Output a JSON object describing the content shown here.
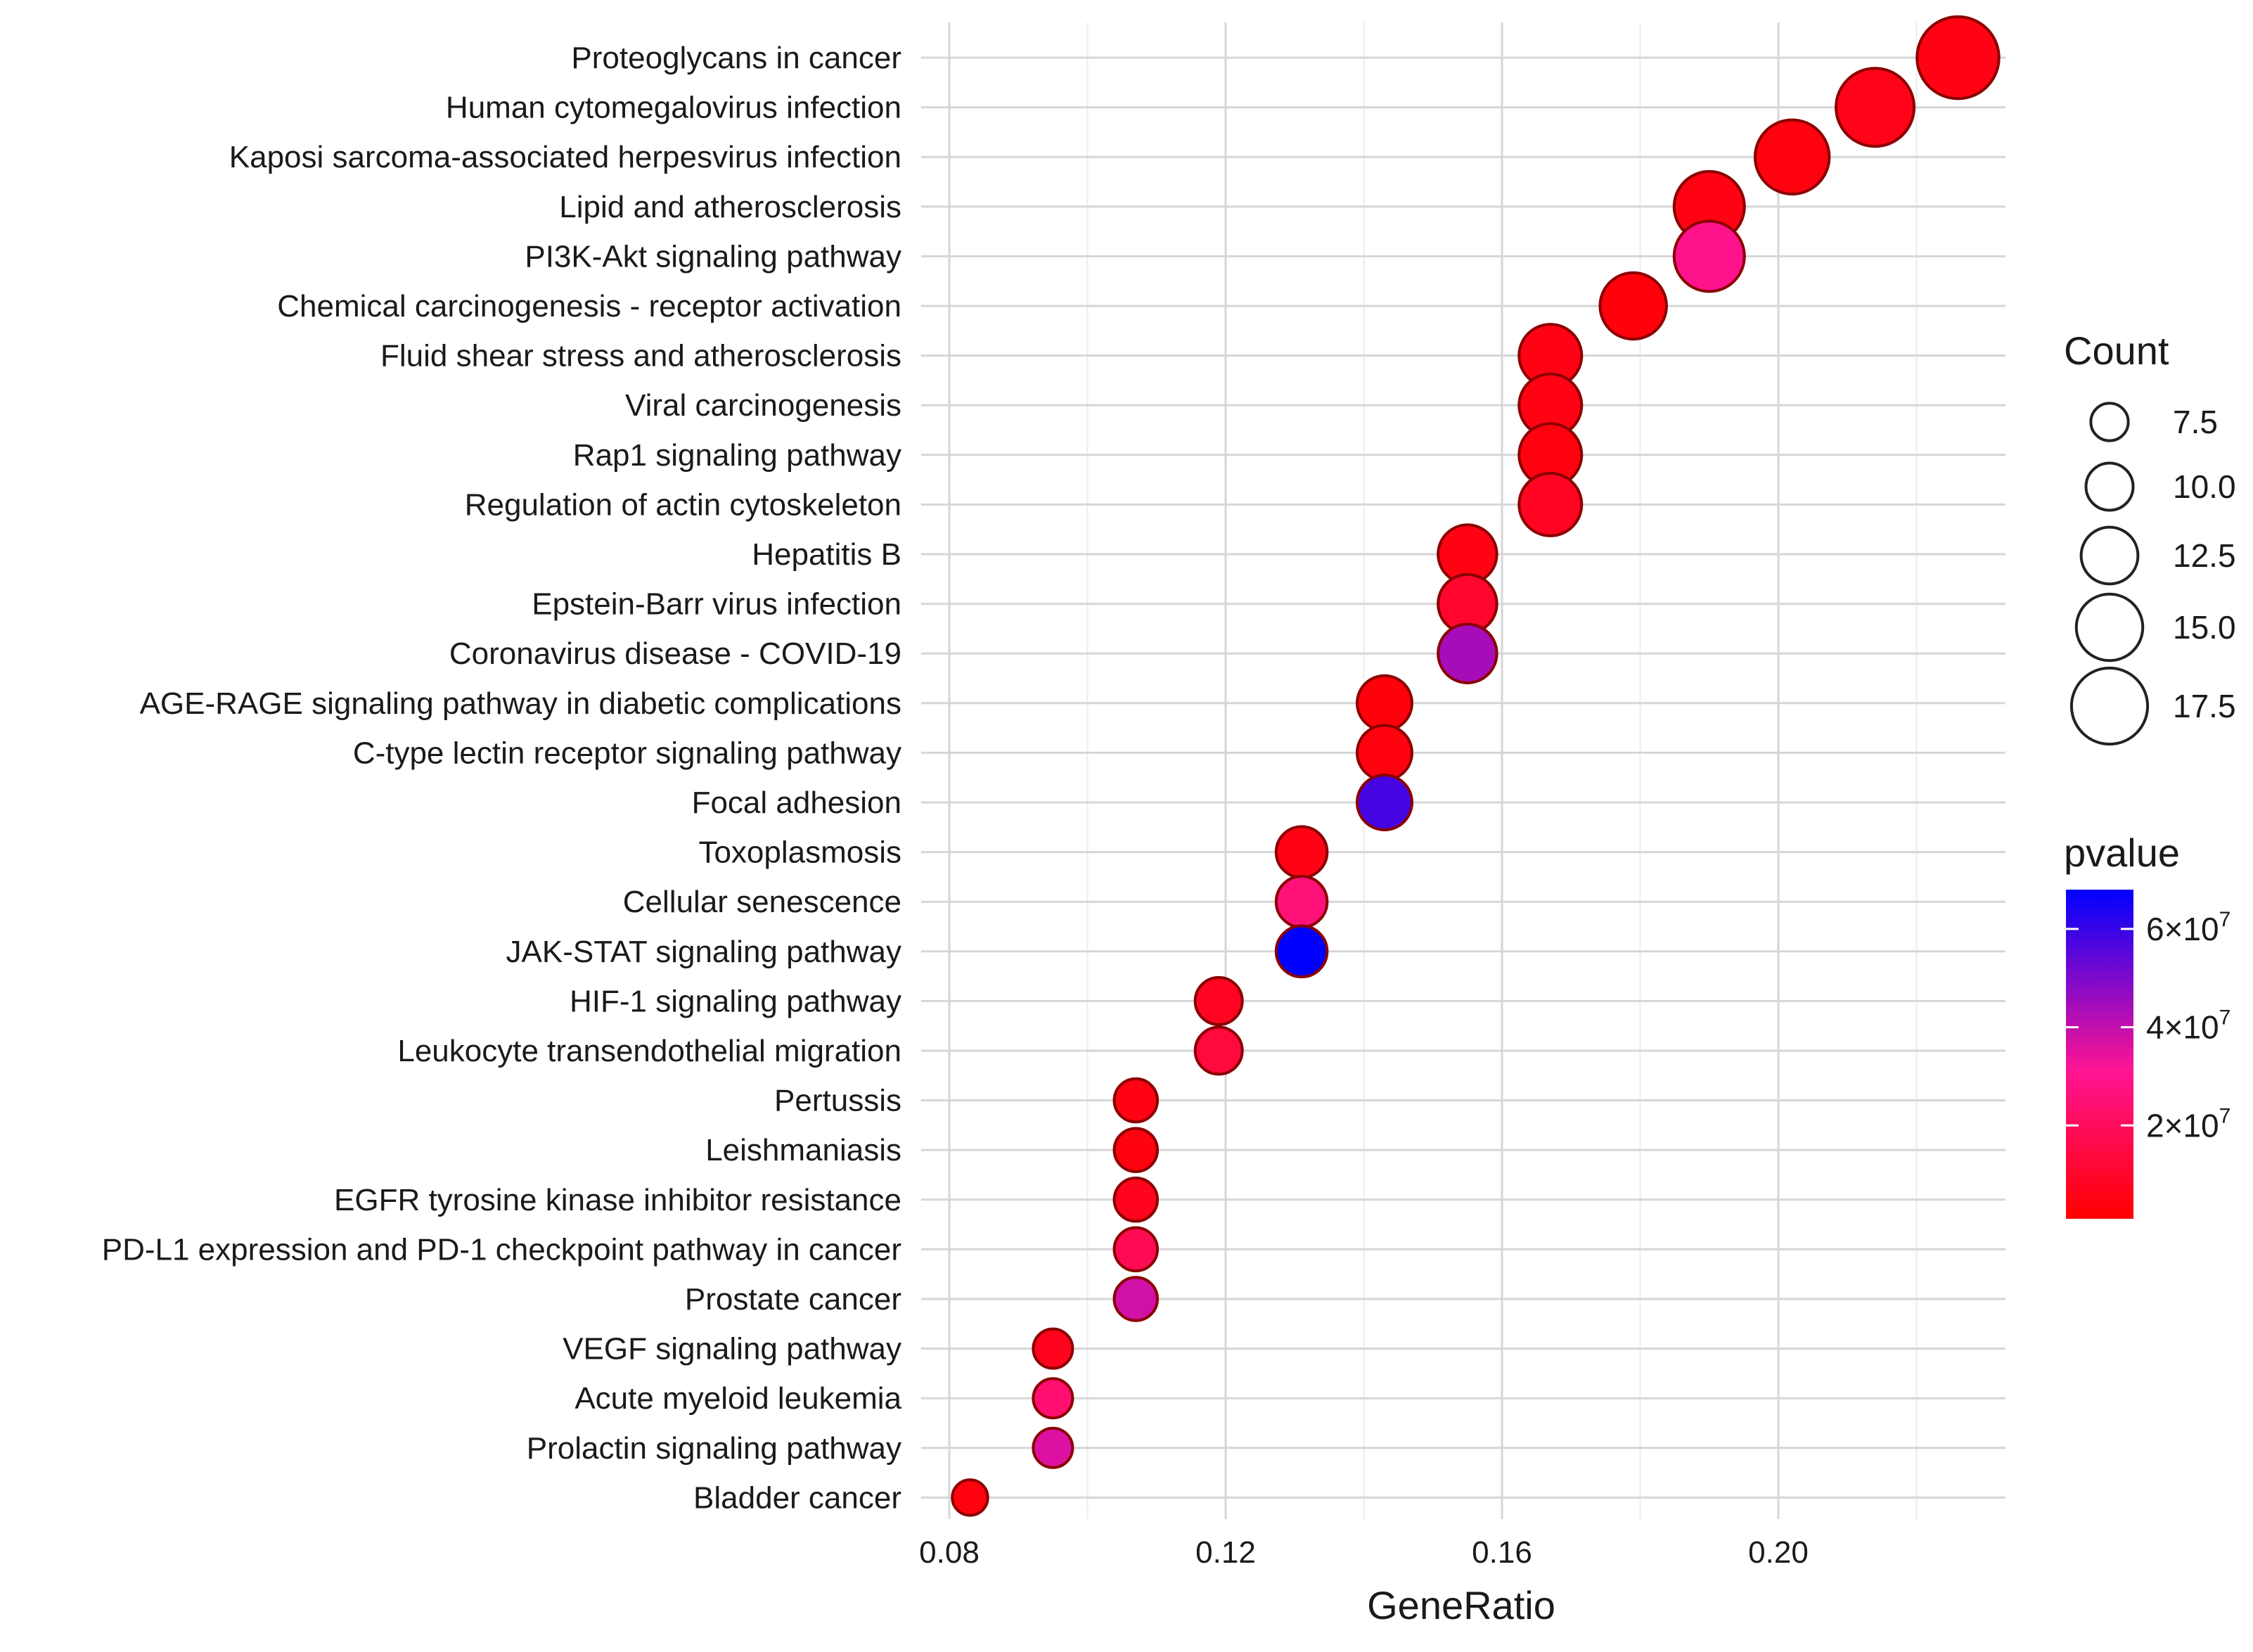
{
  "chart_data": {
    "type": "scatter",
    "title": "",
    "xlabel": "GeneRatio",
    "ylabel": "",
    "xlim": [
      0.076,
      0.235
    ],
    "xticks": [
      0.08,
      0.12,
      0.16,
      0.2
    ],
    "xtick_labels": [
      "0.08",
      "0.12",
      "0.16",
      "0.20"
    ],
    "grid": true,
    "categories": [
      "Proteoglycans in cancer",
      "Human cytomegalovirus infection",
      "Kaposi sarcoma-associated herpesvirus infection",
      "Lipid and atherosclerosis",
      "PI3K-Akt signaling pathway",
      "Chemical carcinogenesis - receptor activation",
      "Fluid shear stress and atherosclerosis",
      "Viral carcinogenesis",
      "Rap1 signaling pathway",
      "Regulation of actin cytoskeleton",
      "Hepatitis B",
      "Epstein-Barr virus infection",
      "Coronavirus disease - COVID-19",
      "AGE-RAGE signaling pathway in diabetic complications",
      "C-type lectin receptor signaling pathway",
      "Focal adhesion",
      "Toxoplasmosis",
      "Cellular senescence",
      "JAK-STAT signaling pathway",
      "HIF-1 signaling pathway",
      "Leukocyte transendothelial migration",
      "Pertussis",
      "Leishmaniasis",
      "EGFR tyrosine kinase inhibitor resistance",
      "PD-L1 expression and PD-1 checkpoint pathway in cancer",
      "Prostate cancer",
      "VEGF signaling pathway",
      "Acute myeloid leukemia",
      "Prolactin signaling pathway",
      "Bladder cancer"
    ],
    "gene_ratio": [
      0.226,
      0.214,
      0.202,
      0.19,
      0.19,
      0.179,
      0.167,
      0.167,
      0.167,
      0.167,
      0.155,
      0.155,
      0.155,
      0.143,
      0.143,
      0.143,
      0.131,
      0.131,
      0.131,
      0.119,
      0.119,
      0.107,
      0.107,
      0.107,
      0.107,
      0.107,
      0.095,
      0.095,
      0.095,
      0.083
    ],
    "count": [
      19,
      18,
      17,
      16,
      16,
      15,
      14,
      14,
      14,
      14,
      13,
      13,
      13,
      12,
      12,
      12,
      11,
      11,
      11,
      10,
      10,
      9,
      9,
      9,
      9,
      9,
      8,
      8,
      8,
      7
    ],
    "pvalue": [
      5000000.0,
      6000000.0,
      4000000.0,
      5000000.0,
      30000000.0,
      3000000.0,
      5000000.0,
      5000000.0,
      4000000.0,
      8000000.0,
      5000000.0,
      10000000.0,
      44000000.0,
      3000000.0,
      4000000.0,
      58000000.0,
      5000000.0,
      26000000.0,
      68000000.0,
      8000000.0,
      14000000.0,
      5000000.0,
      4000000.0,
      7000000.0,
      18000000.0,
      38000000.0,
      7000000.0,
      24000000.0,
      36000000.0,
      4000000.0
    ],
    "legends": {
      "size": {
        "title": "Count",
        "values": [
          7.5,
          10.0,
          12.5,
          15.0,
          17.5
        ],
        "labels": [
          "7.5",
          "10.0",
          "12.5",
          "15.0",
          "17.5"
        ]
      },
      "color": {
        "title": "pvalue",
        "range": [
          1000000,
          68000000
        ],
        "low_color": "#ff0000",
        "mid_color": "#ff1493",
        "high_color": "#0000ff",
        "ticks": [
          {
            "value": 20000000,
            "base": "2×10",
            "exp": "7"
          },
          {
            "value": 40000000,
            "base": "4×10",
            "exp": "7"
          },
          {
            "value": 60000000,
            "base": "6×10",
            "exp": "7"
          }
        ]
      }
    }
  }
}
